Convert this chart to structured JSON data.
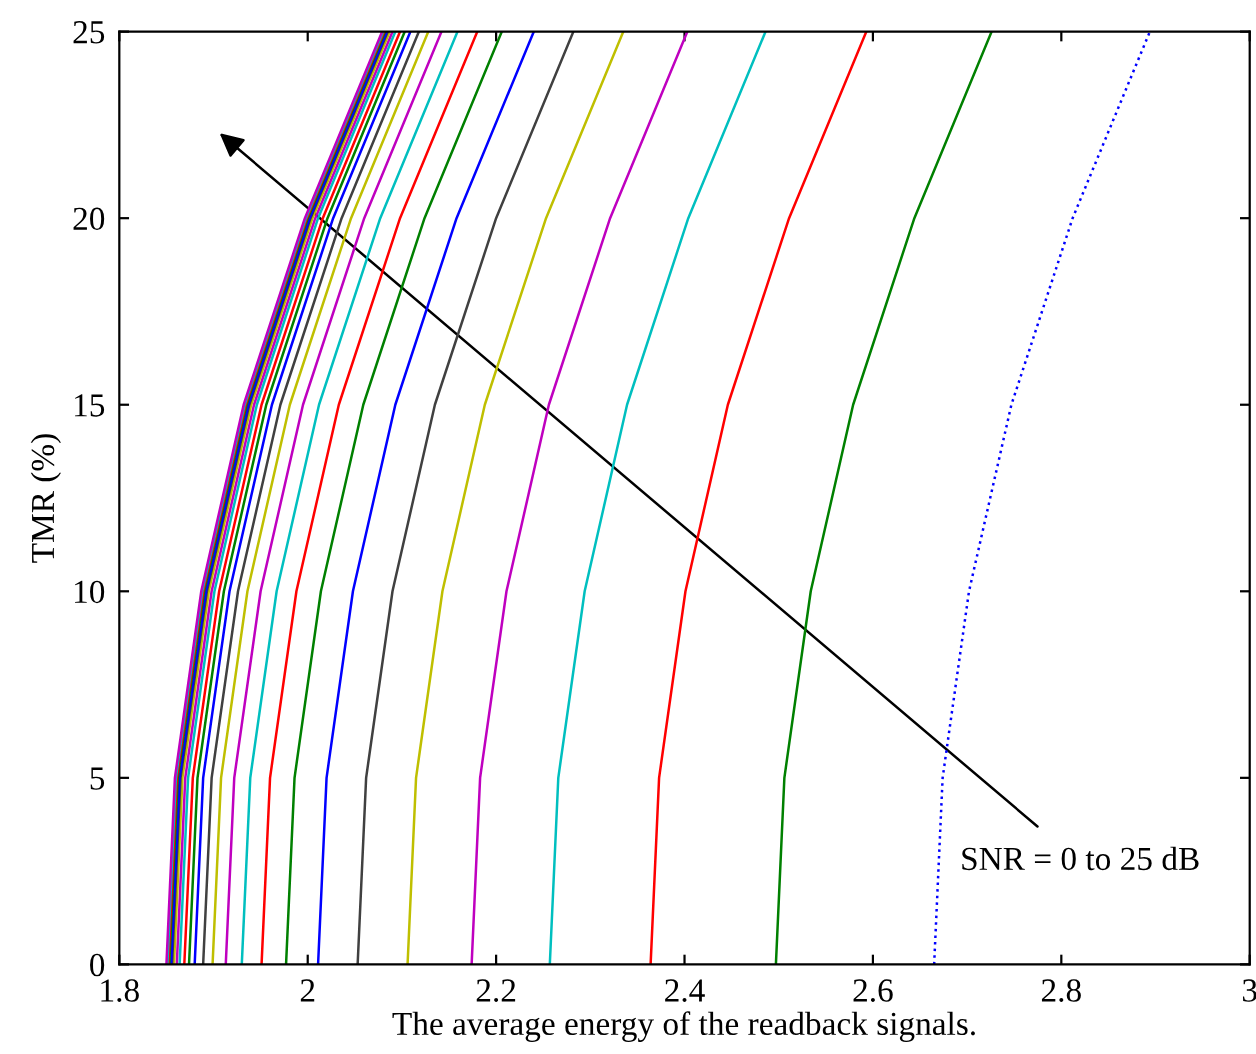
{
  "chart_data": {
    "type": "line",
    "xlabel": "The average energy of the readback signals.",
    "ylabel": "TMR (%)",
    "xlim": [
      1.8,
      3
    ],
    "ylim": [
      0,
      25
    ],
    "xticks": [
      1.8,
      2,
      2.2,
      2.4,
      2.6,
      2.8,
      3
    ],
    "yticks": [
      0,
      5,
      10,
      15,
      20,
      25
    ],
    "annotations": [
      "SNR = 0 to 25 dB"
    ],
    "series": [
      {
        "color": "#0000ff",
        "line_style": "dotted",
        "x": [
          2.665,
          2.674,
          2.702,
          2.747,
          2.812,
          2.894
        ],
        "values": [
          0,
          5,
          10,
          15,
          20,
          25
        ]
      },
      {
        "color": "#008000",
        "x": [
          2.497,
          2.506,
          2.534,
          2.579,
          2.644,
          2.726
        ],
        "values": [
          0,
          5,
          10,
          15,
          20,
          25
        ]
      },
      {
        "color": "#ff0000",
        "x": [
          2.364,
          2.373,
          2.401,
          2.446,
          2.511,
          2.593
        ],
        "values": [
          0,
          5,
          10,
          15,
          20,
          25
        ]
      },
      {
        "color": "#00bfbf",
        "x": [
          2.257,
          2.266,
          2.294,
          2.339,
          2.404,
          2.486
        ],
        "values": [
          0,
          5,
          10,
          15,
          20,
          25
        ]
      },
      {
        "color": "#bf00bf",
        "x": [
          2.174,
          2.183,
          2.211,
          2.256,
          2.321,
          2.403
        ],
        "values": [
          0,
          5,
          10,
          15,
          20,
          25
        ]
      },
      {
        "color": "#bfbf00",
        "x": [
          2.106,
          2.115,
          2.143,
          2.188,
          2.253,
          2.335
        ],
        "values": [
          0,
          5,
          10,
          15,
          20,
          25
        ]
      },
      {
        "color": "#404040",
        "x": [
          2.053,
          2.062,
          2.09,
          2.135,
          2.2,
          2.282
        ],
        "values": [
          0,
          5,
          10,
          15,
          20,
          25
        ]
      },
      {
        "color": "#0000ff",
        "x": [
          2.011,
          2.02,
          2.048,
          2.093,
          2.158,
          2.24
        ],
        "values": [
          0,
          5,
          10,
          15,
          20,
          25
        ]
      },
      {
        "color": "#008000",
        "x": [
          1.977,
          1.986,
          2.014,
          2.059,
          2.124,
          2.206
        ],
        "values": [
          0,
          5,
          10,
          15,
          20,
          25
        ]
      },
      {
        "color": "#ff0000",
        "x": [
          1.951,
          1.96,
          1.988,
          2.033,
          2.098,
          2.18
        ],
        "values": [
          0,
          5,
          10,
          15,
          20,
          25
        ]
      },
      {
        "color": "#00bfbf",
        "x": [
          1.93,
          1.939,
          1.967,
          2.012,
          2.077,
          2.159
        ],
        "values": [
          0,
          5,
          10,
          15,
          20,
          25
        ]
      },
      {
        "color": "#bf00bf",
        "x": [
          1.913,
          1.922,
          1.95,
          1.995,
          2.06,
          2.142
        ],
        "values": [
          0,
          5,
          10,
          15,
          20,
          25
        ]
      },
      {
        "color": "#bfbf00",
        "x": [
          1.899,
          1.908,
          1.936,
          1.981,
          2.046,
          2.128
        ],
        "values": [
          0,
          5,
          10,
          15,
          20,
          25
        ]
      },
      {
        "color": "#404040",
        "x": [
          1.889,
          1.898,
          1.926,
          1.971,
          2.036,
          2.118
        ],
        "values": [
          0,
          5,
          10,
          15,
          20,
          25
        ]
      },
      {
        "color": "#0000ff",
        "x": [
          1.88,
          1.889,
          1.917,
          1.962,
          2.027,
          2.109
        ],
        "values": [
          0,
          5,
          10,
          15,
          20,
          25
        ]
      },
      {
        "color": "#008000",
        "x": [
          1.874,
          1.883,
          1.911,
          1.956,
          2.021,
          2.103
        ],
        "values": [
          0,
          5,
          10,
          15,
          20,
          25
        ]
      },
      {
        "color": "#ff0000",
        "x": [
          1.869,
          1.878,
          1.906,
          1.951,
          2.016,
          2.098
        ],
        "values": [
          0,
          5,
          10,
          15,
          20,
          25
        ]
      },
      {
        "color": "#00bfbf",
        "x": [
          1.864,
          1.873,
          1.901,
          1.946,
          2.011,
          2.093
        ],
        "values": [
          0,
          5,
          10,
          15,
          20,
          25
        ]
      },
      {
        "color": "#bf00bf",
        "x": [
          1.861,
          1.87,
          1.898,
          1.943,
          2.008,
          2.09
        ],
        "values": [
          0,
          5,
          10,
          15,
          20,
          25
        ]
      },
      {
        "color": "#bfbf00",
        "x": [
          1.858,
          1.867,
          1.895,
          1.94,
          2.005,
          2.087
        ],
        "values": [
          0,
          5,
          10,
          15,
          20,
          25
        ]
      },
      {
        "color": "#404040",
        "x": [
          1.856,
          1.865,
          1.893,
          1.938,
          2.003,
          2.085
        ],
        "values": [
          0,
          5,
          10,
          15,
          20,
          25
        ]
      },
      {
        "color": "#0000ff",
        "x": [
          1.855,
          1.864,
          1.892,
          1.937,
          2.002,
          2.084
        ],
        "values": [
          0,
          5,
          10,
          15,
          20,
          25
        ]
      },
      {
        "color": "#008000",
        "x": [
          1.853,
          1.862,
          1.89,
          1.935,
          2.0,
          2.082
        ],
        "values": [
          0,
          5,
          10,
          15,
          20,
          25
        ]
      },
      {
        "color": "#ff0000",
        "x": [
          1.852,
          1.861,
          1.889,
          1.934,
          1.999,
          2.081
        ],
        "values": [
          0,
          5,
          10,
          15,
          20,
          25
        ]
      },
      {
        "color": "#00bfbf",
        "x": [
          1.851,
          1.86,
          1.888,
          1.933,
          1.998,
          2.08
        ],
        "values": [
          0,
          5,
          10,
          15,
          20,
          25
        ]
      },
      {
        "color": "#bf00bf",
        "x": [
          1.85,
          1.859,
          1.887,
          1.932,
          1.997,
          2.079
        ],
        "values": [
          0,
          5,
          10,
          15,
          20,
          25
        ]
      }
    ]
  }
}
